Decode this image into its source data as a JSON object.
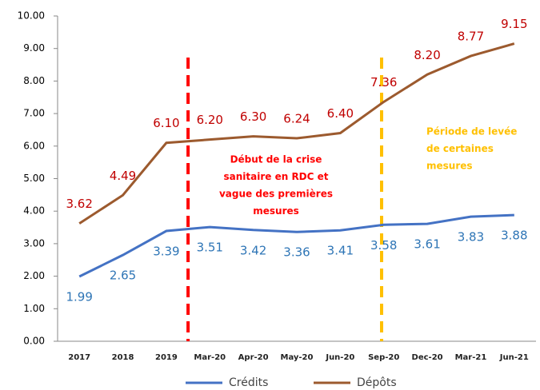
{
  "chart_data": {
    "type": "line",
    "categories": [
      "2017",
      "2018",
      "2019",
      "Mar-20",
      "Apr-20",
      "May-20",
      "Jun-20",
      "Sep-20",
      "Dec-20",
      "Mar-21",
      "Jun-21"
    ],
    "series": [
      {
        "name": "Crédits",
        "color": "#4472c4",
        "label_color": "#2e75b6",
        "values": [
          1.99,
          2.65,
          3.39,
          3.51,
          3.42,
          3.36,
          3.41,
          3.58,
          3.61,
          3.83,
          3.88
        ],
        "value_labels": [
          "1.99",
          "2.65",
          "3.39",
          "3.51",
          "3.42",
          "3.36",
          "3.41",
          "3.58",
          "3.61",
          "3.83",
          "3.88"
        ]
      },
      {
        "name": "Dépôts",
        "color": "#9c5a2e",
        "label_color": "#c00000",
        "values": [
          3.62,
          4.49,
          6.1,
          6.2,
          6.3,
          6.24,
          6.4,
          7.36,
          8.2,
          8.77,
          9.15
        ],
        "value_labels": [
          "3.62",
          "4.49",
          "6.10",
          "6.20",
          "6.30",
          "6.24",
          "6.40",
          "7.36",
          "8.20",
          "8.77",
          "9.15"
        ]
      }
    ],
    "ylim": [
      0,
      10
    ],
    "yticks": [
      {
        "value": 0,
        "label": "0.00"
      },
      {
        "value": 1,
        "label": "1.00"
      },
      {
        "value": 2,
        "label": "2.00"
      },
      {
        "value": 3,
        "label": "3.00"
      },
      {
        "value": 4,
        "label": "4.00"
      },
      {
        "value": 5,
        "label": "5.00"
      },
      {
        "value": 6,
        "label": "6.00"
      },
      {
        "value": 7,
        "label": "7.00"
      },
      {
        "value": 8,
        "label": "8.00"
      },
      {
        "value": 9,
        "label": "9.00"
      },
      {
        "value": 10,
        "label": "10.00"
      }
    ],
    "annotations": [
      {
        "color": "#ff0000",
        "lines": [
          "Début de la crise",
          "sanitaire en RDC et",
          "vague des premières",
          "mesures"
        ]
      },
      {
        "color": "#ffc000",
        "lines": [
          "Période de levée",
          "de certaines",
          "mesures"
        ]
      }
    ],
    "legend": "bottom"
  }
}
